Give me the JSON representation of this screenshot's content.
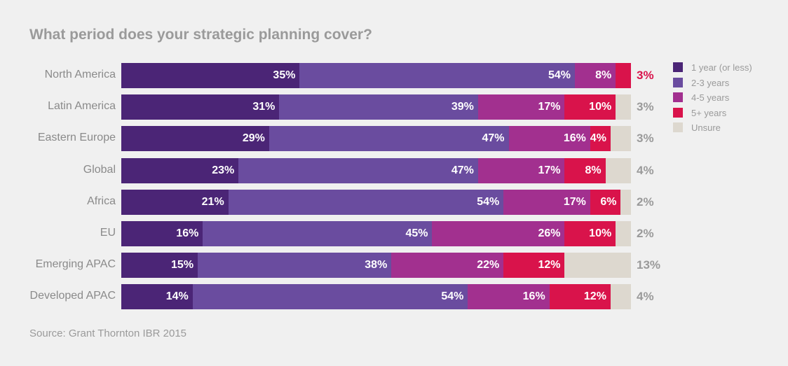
{
  "chart_data": {
    "type": "bar",
    "orientation": "horizontal",
    "stacked": true,
    "title": "What period does your strategic planning cover?",
    "source": "Source: Grant Thornton IBR 2015",
    "legend_position": "right",
    "categories": [
      "North America",
      "Latin America",
      "Eastern Europe",
      "Global",
      "Africa",
      "EU",
      "Emerging APAC",
      "Developed APAC"
    ],
    "series": [
      {
        "name": "1 year (or less)",
        "color": "#4b2576",
        "values": [
          35,
          31,
          29,
          23,
          21,
          16,
          15,
          14
        ]
      },
      {
        "name": "2-3 years",
        "color": "#6a4c9f",
        "values": [
          54,
          39,
          47,
          47,
          54,
          45,
          38,
          54
        ]
      },
      {
        "name": "4-5 years",
        "color": "#a2308f",
        "values": [
          8,
          17,
          16,
          17,
          17,
          26,
          22,
          16
        ]
      },
      {
        "name": "5+ years",
        "color": "#d9134b",
        "values": [
          3,
          10,
          4,
          8,
          6,
          10,
          12,
          12
        ]
      },
      {
        "name": "Unsure",
        "color": "#ddd8cf",
        "values": [
          0,
          3,
          3,
          4,
          2,
          2,
          13,
          4
        ]
      }
    ],
    "unit": "%",
    "xlim": [
      0,
      100
    ],
    "grid": false
  }
}
